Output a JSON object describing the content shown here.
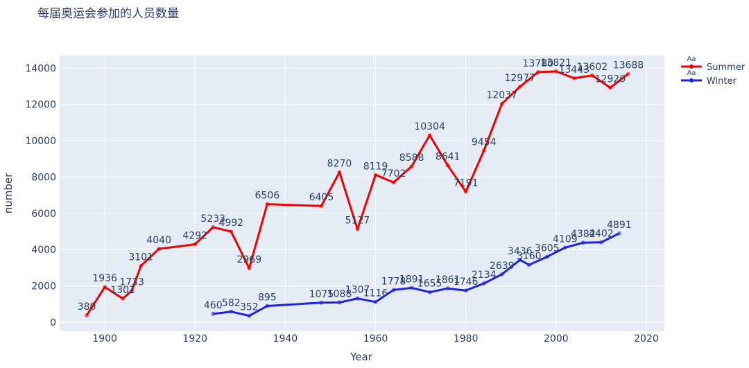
{
  "chart_data": {
    "type": "line",
    "title": "每届奥运会参加的人员数量",
    "xlabel": "Year",
    "ylabel": "number",
    "xlim": [
      1890,
      2024
    ],
    "ylim": [
      -500,
      14700
    ],
    "xticks": [
      1900,
      1920,
      1940,
      1960,
      1980,
      2000,
      2020
    ],
    "yticks": [
      0,
      2000,
      4000,
      6000,
      8000,
      10000,
      12000,
      14000
    ],
    "grid": true,
    "legend": "top-right",
    "legend_marker_text": "Aa",
    "series": [
      {
        "name": "Summer",
        "color": "#ee0000",
        "x": [
          1896,
          1900,
          1904,
          1906,
          1908,
          1912,
          1920,
          1924,
          1928,
          1932,
          1936,
          1948,
          1952,
          1956,
          1960,
          1964,
          1968,
          1972,
          1976,
          1980,
          1984,
          1988,
          1992,
          1996,
          2000,
          2004,
          2008,
          2012,
          2016
        ],
        "y": [
          380,
          1936,
          1301,
          1733,
          3101,
          4040,
          4292,
          5233,
          4992,
          2969,
          6506,
          6405,
          8270,
          5127,
          8119,
          7702,
          8588,
          10304,
          8641,
          7191,
          9454,
          12037,
          12977,
          13780,
          13821,
          13443,
          13602,
          12920,
          13688
        ]
      },
      {
        "name": "Winter",
        "color": "#2222dd",
        "x": [
          1924,
          1928,
          1932,
          1936,
          1948,
          1952,
          1956,
          1960,
          1964,
          1968,
          1972,
          1976,
          1980,
          1984,
          1988,
          1992,
          1994,
          1998,
          2002,
          2006,
          2010,
          2014
        ],
        "y": [
          460,
          582,
          352,
          895,
          1075,
          1088,
          1307,
          1116,
          1778,
          1891,
          1655,
          1861,
          1746,
          2134,
          2639,
          3436,
          3160,
          3605,
          4109,
          4382,
          4402,
          4891
        ]
      }
    ]
  }
}
